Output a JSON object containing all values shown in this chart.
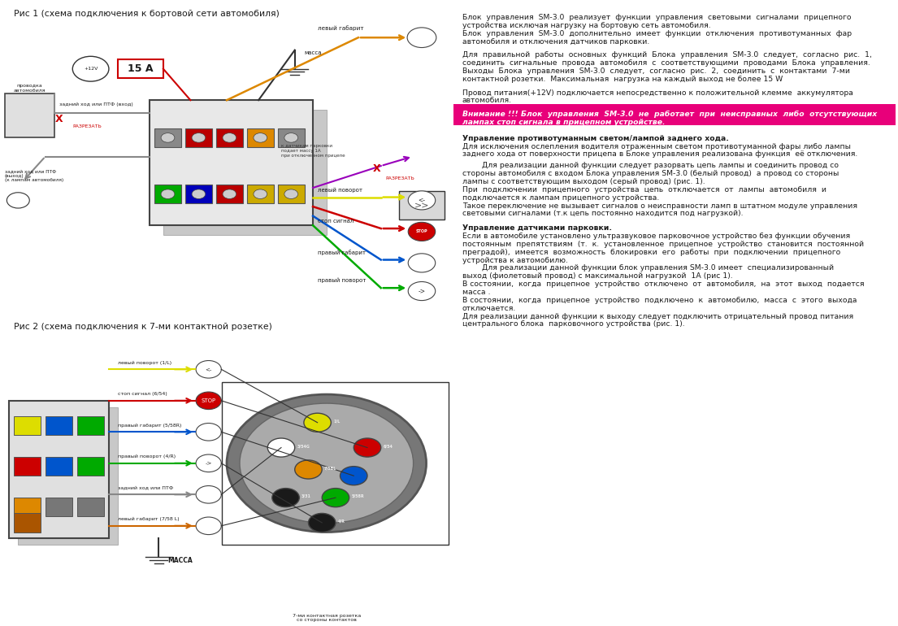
{
  "background_color": "#ffffff",
  "fig1_title": "Рис 1 (схема подключения к бортовой сети автомобиля)",
  "fig2_title": "Рис 2 (схема подключения к 7-ми контактной розетке)",
  "right_text_para1": "Блок  управления  SM-3.0  реализует  функции  управления  световыми  сигналами  прицепного\nустройства исключая нагрузку на бортовую сеть автомобиля.\nБлок  управления  SM-3.0  дополнительно  имеет  функции  отключения  противотуманных  фар\nавтомобиля и отключения датчиков парковки.",
  "right_text_para2": "Для  правильной  работы  основных  функций  Блока  управления  SM-3.0  следует,  согласно  рис.  1,\nсоединить  сигнальные  провода  автомобиля  с  соответствующими  проводами  Блока  управления.\nВыходы  Блока  управления  SM-3.0  следует,  согласно  рис.  2,  соединить  с  контактами  7-ми\nконтактной розетки.  Максимальная  нагрузка на каждый выход не более 15 W",
  "right_text_para3": "Провод питания(+12V) подключается непосредственно к положительной клемме  аккумулятора\nавтомобиля.",
  "right_text_warning": "Внимание !!! Блок  управления  SM-3.0  не  работает  при  неисправных  либо  отсутствующих\nлампах стоп сигнала в прицепном устройстве.",
  "right_text_section1_title": "Управление противотуманным светом/лампой заднего хода.",
  "right_text_section1_body": "Для исключения ослепления водителя отраженным светом противотуманной фары либо лампы\nзаднего хода от поверхности прицепа в Блоке управления реализована функция  её отключения.",
  "right_text_section1_cont": "        Для реализации данной функции следует разорвать цепь лампы и соединить провод со\nстороны автомобиля с входом Блока управления SM-3.0 (белый провод)  а провод со стороны\nлампы с соответствующим выходом (серый провод) (рис. 1).\nПри  подключении  прицепного  устройства  цепь  отключается  от  лампы  автомобиля  и\nподключается к лампам прицепного устройства.\nТакое переключение не вызывает сигналов о неисправности ламп в штатном модуле управления\nсветовыми сигналами (т.к цепь постоянно находится под нагрузкой).",
  "right_text_section2_title": "Управление датчиками парковки.",
  "right_text_section2_body": "Если в автомобиле установлено ультразвуковое парковочное устройство без функции обучения\nпостоянным  препятствиям  (т.  к.  установленное  прицепное  устройство  становится  постоянной\nпреградой),  имеется  возможность  блокировки  его  работы  при  подключении  прицепного\nустройства к автомобилю.\n        Для реализации данной функции блок управления SM-3.0 имеет  специализированный\nвыход (фиолетовый провод) с максимальной нагрузкой  1А (рис 1).\nВ состоянии,  когда  прицепное  устройство  отключено  от  автомобиля,  на  этот  выход  подается\nмасса .\nВ состоянии,  когда  прицепное  устройство  подключено  к  автомобилю,  масса  с  этого  выхода\nотключается.\nДля реализации данной функции к выходу следует подключить отрицательный провод питания\nцентрального блока  парковочного устройства (рис. 1).",
  "warning_bg": "#e8007a",
  "warning_fg": "#ffffff"
}
